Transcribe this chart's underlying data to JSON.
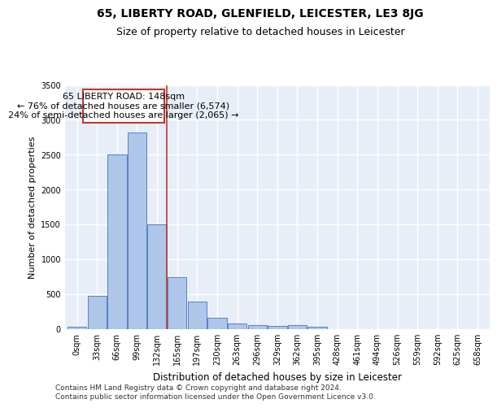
{
  "title": "65, LIBERTY ROAD, GLENFIELD, LEICESTER, LE3 8JG",
  "subtitle": "Size of property relative to detached houses in Leicester",
  "xlabel": "Distribution of detached houses by size in Leicester",
  "ylabel": "Number of detached properties",
  "categories": [
    "0sqm",
    "33sqm",
    "66sqm",
    "99sqm",
    "132sqm",
    "165sqm",
    "197sqm",
    "230sqm",
    "263sqm",
    "296sqm",
    "329sqm",
    "362sqm",
    "395sqm",
    "428sqm",
    "461sqm",
    "494sqm",
    "526sqm",
    "559sqm",
    "592sqm",
    "625sqm",
    "658sqm"
  ],
  "bar_heights": [
    30,
    470,
    2500,
    2820,
    1500,
    740,
    390,
    155,
    80,
    50,
    40,
    50,
    25,
    0,
    0,
    0,
    0,
    0,
    0,
    0,
    0
  ],
  "bar_color": "#aec6e8",
  "bar_edge_color": "#4472c4",
  "property_line_color": "#c0392b",
  "annotation_line1": "65 LIBERTY ROAD: 148sqm",
  "annotation_line2": "← 76% of detached houses are smaller (6,574)",
  "annotation_line3": "24% of semi-detached houses are larger (2,065) →",
  "annotation_box_color": "#c0392b",
  "ylim": [
    0,
    3500
  ],
  "yticks": [
    0,
    500,
    1000,
    1500,
    2000,
    2500,
    3000,
    3500
  ],
  "background_color": "#e8eef8",
  "grid_color": "#ffffff",
  "footer_text": "Contains HM Land Registry data © Crown copyright and database right 2024.\nContains public sector information licensed under the Open Government Licence v3.0.",
  "title_fontsize": 10,
  "subtitle_fontsize": 9,
  "xlabel_fontsize": 8.5,
  "ylabel_fontsize": 8,
  "tick_fontsize": 7,
  "annotation_fontsize": 8,
  "footer_fontsize": 6.5
}
